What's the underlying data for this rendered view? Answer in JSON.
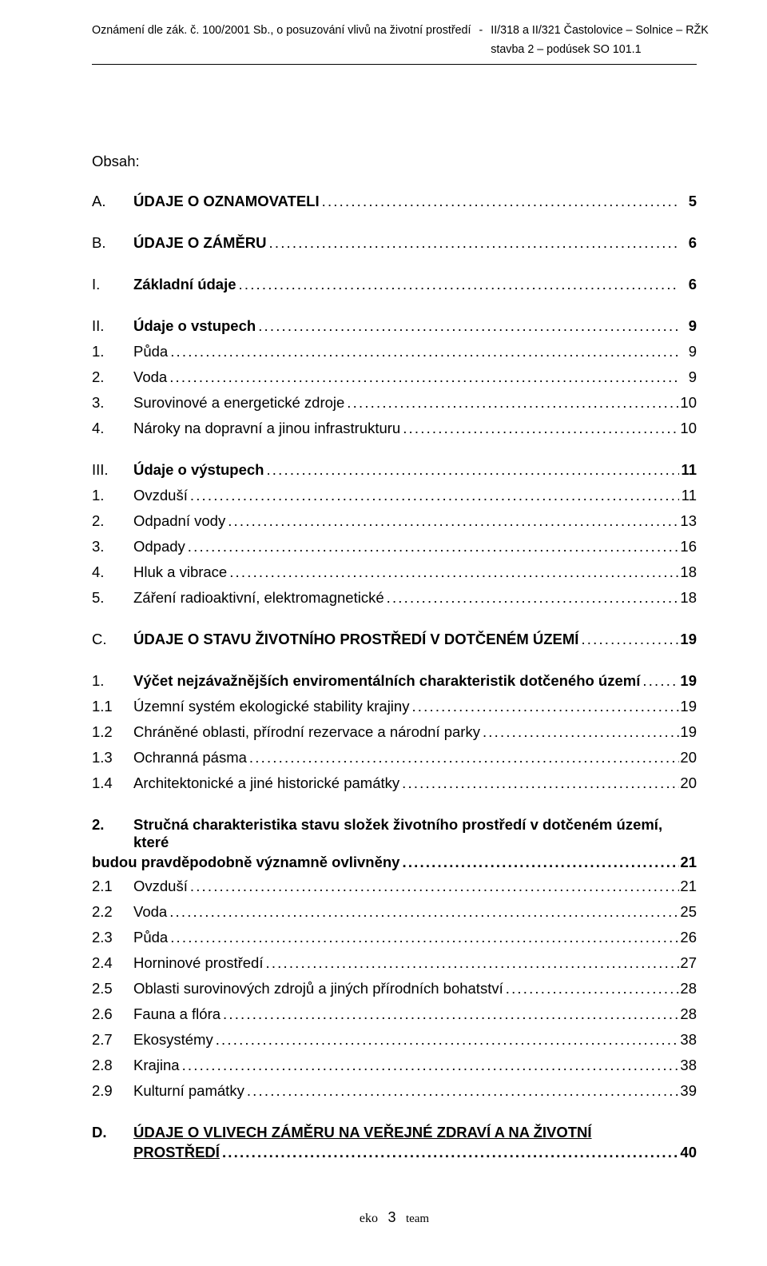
{
  "header": {
    "left": "Oznámení dle zák. č. 100/2001 Sb., o posuzování vlivů na životní prostředí",
    "dash": "-",
    "right1": "II/318 a II/321 Častolovice – Solnice – RŽK",
    "right2": "stavba 2 – podúsek SO 101.1"
  },
  "obsah": "Obsah:",
  "dots": "........................................................................................................................................................................................................................................................................",
  "toc": [
    {
      "cls": "bold gap-md",
      "numcls": "num-letter",
      "num": "A.",
      "label": "ÚDAJE O OZNAMOVATELI",
      "page": "5"
    },
    {
      "cls": "bold gap-lg",
      "numcls": "num-letter",
      "num": "B.",
      "label": "ÚDAJE O ZÁMĚRU",
      "page": "6"
    },
    {
      "cls": "bold gap-lg",
      "numcls": "num-roman",
      "num": "I.",
      "label": "Základní údaje",
      "page": "6"
    },
    {
      "cls": "bold gap-lg",
      "numcls": "num-roman",
      "num": "II.",
      "label": "Údaje o vstupech",
      "page": "9"
    },
    {
      "cls": "gap-sm",
      "numcls": "num-arabic",
      "num": "1.",
      "label": "Půda",
      "page": "9"
    },
    {
      "cls": "gap-sm",
      "numcls": "num-arabic",
      "num": "2.",
      "label": "Voda",
      "page": "9"
    },
    {
      "cls": "gap-sm",
      "numcls": "num-arabic",
      "num": "3.",
      "label": "Surovinové a energetické zdroje",
      "page": "10"
    },
    {
      "cls": "gap-sm",
      "numcls": "num-arabic",
      "num": "4.",
      "label": "Nároky na dopravní a jinou infrastrukturu",
      "page": "10"
    },
    {
      "cls": "bold gap-lg",
      "numcls": "num-roman",
      "num": "III.",
      "label": "Údaje o výstupech",
      "page": "11"
    },
    {
      "cls": "gap-sm",
      "numcls": "num-arabic",
      "num": "1.",
      "label": "Ovzduší",
      "page": "11"
    },
    {
      "cls": "gap-sm",
      "numcls": "num-arabic",
      "num": "2.",
      "label": "Odpadní vody",
      "page": "13"
    },
    {
      "cls": "gap-sm",
      "numcls": "num-arabic",
      "num": "3.",
      "label": "Odpady",
      "page": "16"
    },
    {
      "cls": "gap-sm",
      "numcls": "num-arabic",
      "num": "4.",
      "label": "Hluk a vibrace",
      "page": "18"
    },
    {
      "cls": "gap-sm",
      "numcls": "num-arabic",
      "num": "5.",
      "label": "Záření radioaktivní, elektromagnetické",
      "page": "18"
    },
    {
      "cls": "bold gap-lg",
      "numcls": "num-letter",
      "num": "C.",
      "label": "ÚDAJE O STAVU ŽIVOTNÍHO PROSTŘEDÍ V DOTČENÉM ÚZEMÍ",
      "page": "19"
    },
    {
      "cls": "bold gap-lg",
      "numcls": "num-arabic",
      "num": "1.",
      "label": "Výčet nejzávažnějších enviromentálních charakteristik dotčeného území",
      "page": "19"
    },
    {
      "cls": "gap-sm",
      "numcls": "num-sub",
      "num": "1.1",
      "label": "Územní systém ekologické stability krajiny",
      "page": "19"
    },
    {
      "cls": "gap-sm",
      "numcls": "num-sub",
      "num": "1.2",
      "label": "Chráněné oblasti, přírodní rezervace a národní parky",
      "page": "19"
    },
    {
      "cls": "gap-sm",
      "numcls": "num-sub",
      "num": "1.3",
      "label": "Ochranná pásma",
      "page": "20"
    },
    {
      "cls": "gap-sm",
      "numcls": "num-sub",
      "num": "1.4",
      "label": "Architektonické a jiné historické památky",
      "page": "20"
    }
  ],
  "block2": {
    "num": "2.",
    "line1": "Stručná charakteristika stavu složek životního prostředí v dotčeném území, které",
    "line2_label": "budou pravděpodobně významně ovlivněny",
    "page": "21"
  },
  "toc2": [
    {
      "cls": "gap-sm",
      "numcls": "num-sub",
      "num": "2.1",
      "label": "Ovzduší",
      "page": "21"
    },
    {
      "cls": "gap-sm",
      "numcls": "num-sub",
      "num": "2.2",
      "label": "Voda",
      "page": "25"
    },
    {
      "cls": "gap-sm",
      "numcls": "num-sub",
      "num": "2.3",
      "label": "Půda",
      "page": "26"
    },
    {
      "cls": "gap-sm",
      "numcls": "num-sub",
      "num": "2.4",
      "label": "Horninové prostředí",
      "page": "27"
    },
    {
      "cls": "gap-sm",
      "numcls": "num-sub",
      "num": "2.5",
      "label": "Oblasti surovinových zdrojů a jiných přírodních bohatství",
      "page": "28"
    },
    {
      "cls": "gap-sm",
      "numcls": "num-sub",
      "num": "2.6",
      "label": "Fauna a flóra",
      "page": "28"
    },
    {
      "cls": "gap-sm",
      "numcls": "num-sub",
      "num": "2.7",
      "label": "Ekosystémy",
      "page": "38"
    },
    {
      "cls": "gap-sm",
      "numcls": "num-sub",
      "num": "2.8",
      "label": "Krajina",
      "page": "38"
    },
    {
      "cls": "gap-sm",
      "numcls": "num-sub",
      "num": "2.9",
      "label": "Kulturní památky",
      "page": "39"
    }
  ],
  "dblock": {
    "num": "D.",
    "line1": "ÚDAJE O VLIVECH ZÁMĚRU NA VEŘEJNÉ ZDRAVÍ A NA ŽIVOTNÍ",
    "line2_label": "PROSTŘEDÍ",
    "page": "40"
  },
  "footer": {
    "eko": "eko",
    "pagenum": "3",
    "team": "team"
  }
}
